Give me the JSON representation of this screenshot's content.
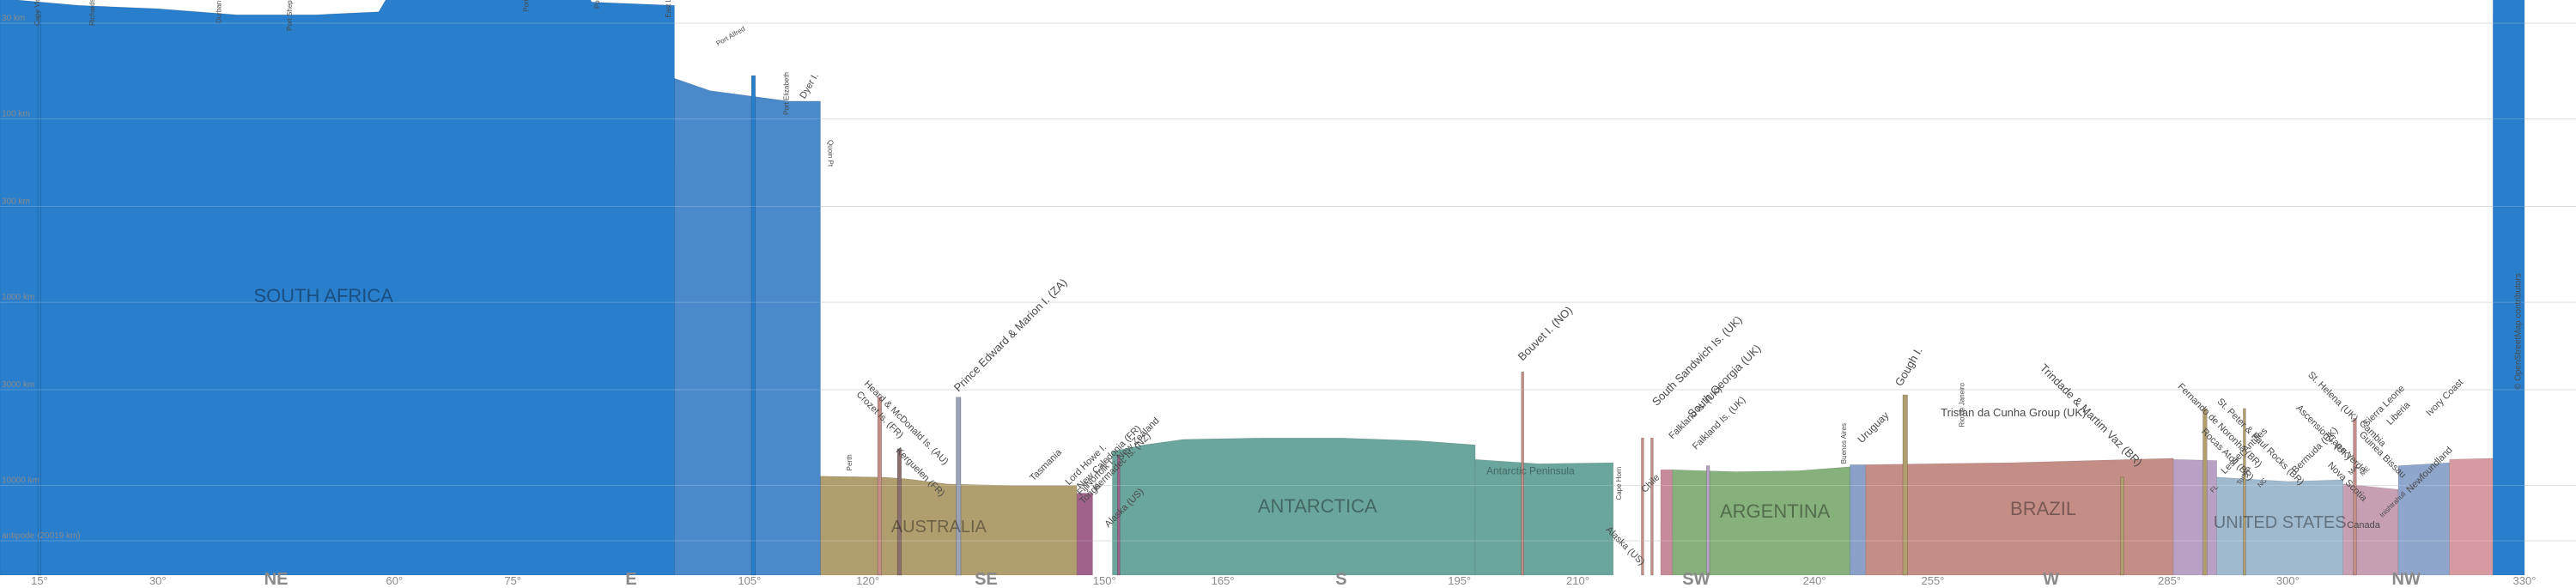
{
  "chart_data": {
    "type": "area",
    "x_unit": "degrees",
    "xlim": [
      10,
      330
    ],
    "y_scale": "log",
    "distance_gridlines": [
      {
        "label": "30 km",
        "km": 30
      },
      {
        "label": "100 km",
        "km": 100
      },
      {
        "label": "300 km",
        "km": 300
      },
      {
        "label": "1000 km",
        "km": 1000
      },
      {
        "label": "3000 km",
        "km": 3000
      },
      {
        "label": "10000 km",
        "km": 10000
      },
      {
        "label": "antipode (20019 km)",
        "km": 20019
      }
    ],
    "x_ticks": [
      {
        "x": 15,
        "label": "15°",
        "kind": "deg"
      },
      {
        "x": 30,
        "label": "30°",
        "kind": "deg"
      },
      {
        "x": 45,
        "label": "NE",
        "kind": "dir"
      },
      {
        "x": 60,
        "label": "60°",
        "kind": "deg"
      },
      {
        "x": 75,
        "label": "75°",
        "kind": "deg"
      },
      {
        "x": 90,
        "label": "E",
        "kind": "dir"
      },
      {
        "x": 105,
        "label": "105°",
        "kind": "deg"
      },
      {
        "x": 120,
        "label": "120°",
        "kind": "deg"
      },
      {
        "x": 135,
        "label": "SE",
        "kind": "dir"
      },
      {
        "x": 150,
        "label": "150°",
        "kind": "deg"
      },
      {
        "x": 165,
        "label": "165°",
        "kind": "deg"
      },
      {
        "x": 180,
        "label": "S",
        "kind": "dir"
      },
      {
        "x": 195,
        "label": "195°",
        "kind": "deg"
      },
      {
        "x": 210,
        "label": "210°",
        "kind": "deg"
      },
      {
        "x": 225,
        "label": "SW",
        "kind": "dir"
      },
      {
        "x": 240,
        "label": "240°",
        "kind": "deg"
      },
      {
        "x": 255,
        "label": "255°",
        "kind": "deg"
      },
      {
        "x": 270,
        "label": "W",
        "kind": "dir"
      },
      {
        "x": 285,
        "label": "285°",
        "kind": "deg"
      },
      {
        "x": 300,
        "label": "300°",
        "kind": "deg"
      },
      {
        "x": 315,
        "label": "NW",
        "kind": "dir"
      },
      {
        "x": 330,
        "label": "330°",
        "kind": "deg"
      }
    ],
    "regions": [
      {
        "name": "SOUTH AFRICA",
        "x0": 10,
        "x1": 95.5,
        "color": "#2a7fcc",
        "label": "SOUTH AFRICA",
        "label_x": 51,
        "label_km": 1000,
        "label_size": 22,
        "profile": [
          [
            10,
            22
          ],
          [
            20,
            24
          ],
          [
            30,
            25
          ],
          [
            40,
            27
          ],
          [
            50,
            27
          ],
          [
            58,
            26
          ],
          [
            59,
            22
          ],
          [
            70,
            21
          ],
          [
            77,
            22
          ],
          [
            78,
            19
          ],
          [
            84,
            19
          ],
          [
            85,
            23
          ],
          [
            95,
            24
          ]
        ]
      },
      {
        "name": "South Africa (south coast)",
        "x0": 95.5,
        "x1": 114,
        "color": "#4a8acb",
        "label": "",
        "profile": [
          [
            95.5,
            60
          ],
          [
            100,
            70
          ],
          [
            110,
            80
          ],
          [
            113,
            80
          ]
        ]
      },
      {
        "name": "Australia",
        "x0": 114,
        "x1": 146.5,
        "color": "#b19e6f",
        "label": "AUSTRALIA",
        "label_x": 129,
        "label_km": 18000,
        "label_size": 20,
        "profile": [
          [
            114,
            8900
          ],
          [
            122,
            9000
          ],
          [
            125,
            9200
          ],
          [
            130,
            9800
          ],
          [
            138,
            10000
          ],
          [
            146,
            10000
          ]
        ]
      },
      {
        "name": "Tasmania",
        "x0": 146.5,
        "x1": 148.5,
        "color": "#a0628a",
        "label": "",
        "profile": [
          [
            146.5,
            11000
          ],
          [
            148.5,
            11000
          ]
        ]
      },
      {
        "name": "Antarctica",
        "x0": 151,
        "x1": 197,
        "color": "#6aa69c",
        "label": "ANTARCTICA",
        "label_x": 177,
        "label_km": 14000,
        "label_size": 22,
        "profile": [
          [
            151,
            6500
          ],
          [
            155,
            6000
          ],
          [
            160,
            5600
          ],
          [
            170,
            5500
          ],
          [
            180,
            5500
          ],
          [
            190,
            5700
          ],
          [
            196,
            6000
          ]
        ]
      },
      {
        "name": "Antarctic Peninsula",
        "x0": 197,
        "x1": 214.5,
        "color": "#6aa69c",
        "label": "Antarctic Peninsula",
        "label_x": 204,
        "label_km": 8700,
        "label_size": 12,
        "profile": [
          [
            197,
            7200
          ],
          [
            205,
            7600
          ],
          [
            214,
            7500
          ]
        ]
      },
      {
        "name": "Chile",
        "x0": 220.5,
        "x1": 222,
        "color": "#c78a98",
        "label": "",
        "profile": [
          [
            220.5,
            8200
          ],
          [
            222,
            8200
          ]
        ]
      },
      {
        "name": "Argentina",
        "x0": 222,
        "x1": 244.5,
        "color": "#86b07c",
        "label": "ARGENTINA",
        "label_x": 235,
        "label_km": 15000,
        "label_size": 22,
        "profile": [
          [
            222,
            8200
          ],
          [
            230,
            8400
          ],
          [
            238,
            8300
          ],
          [
            244,
            7900
          ]
        ]
      },
      {
        "name": "Uruguay",
        "x0": 244.5,
        "x1": 246.5,
        "color": "#8aa0c8",
        "label": "",
        "profile": [
          [
            244.5,
            7700
          ],
          [
            246.5,
            7700
          ]
        ]
      },
      {
        "name": "Brazil",
        "x0": 246.5,
        "x1": 285.5,
        "color": "#c48d86",
        "label": "BRAZIL",
        "label_x": 269,
        "label_km": 14500,
        "label_size": 22,
        "profile": [
          [
            246.5,
            7700
          ],
          [
            255,
            7600
          ],
          [
            265,
            7500
          ],
          [
            275,
            7300
          ],
          [
            285,
            7100
          ]
        ]
      },
      {
        "name": "French Guiana / Suriname / Guyana / Venezuela",
        "x0": 285.5,
        "x1": 291,
        "color": "#b8a1c4",
        "label": "",
        "profile": [
          [
            285.5,
            7200
          ],
          [
            291,
            7300
          ]
        ]
      },
      {
        "name": "United States",
        "x0": 291,
        "x1": 307,
        "color": "#9fb9ce",
        "label": "UNITED STATES",
        "label_x": 299,
        "label_km": 17000,
        "label_size": 20,
        "profile": [
          [
            291,
            9000
          ],
          [
            300,
            9500
          ],
          [
            307,
            9300
          ]
        ]
      },
      {
        "name": "Canada",
        "x0": 307,
        "x1": 314,
        "color": "#c6a0b2",
        "label": "",
        "profile": [
          [
            307,
            9800
          ],
          [
            314,
            10500
          ]
        ]
      },
      {
        "name": "West Africa",
        "x0": 314,
        "x1": 320.5,
        "color": "#8fa6cc",
        "label": "",
        "profile": [
          [
            314,
            7800
          ],
          [
            320.5,
            7500
          ]
        ]
      },
      {
        "name": "Ivory Coast",
        "x0": 320.5,
        "x1": 326,
        "color": "#d89aa2",
        "label": "",
        "profile": [
          [
            320.5,
            7200
          ],
          [
            326,
            7100
          ]
        ]
      },
      {
        "name": "South Africa (west)",
        "x0": 326,
        "x1": 330,
        "color": "#2a7fcc",
        "label": "",
        "profile": [
          [
            326,
            22
          ],
          [
            330,
            22
          ]
        ]
      }
    ],
    "spikes": [
      {
        "x": 15,
        "km": 26,
        "w": 0.4,
        "color": "#2a7fcc",
        "label": "Cape Vidal"
      },
      {
        "x": 105.5,
        "km": 58,
        "w": 0.5,
        "color": "#2a7fcc",
        "label": ""
      },
      {
        "x": 121.5,
        "km": 3300,
        "w": 0.5,
        "color": "#c48d86",
        "label": ""
      },
      {
        "x": 124,
        "km": 6300,
        "w": 0.5,
        "color": "#8b6e6e",
        "label": ""
      },
      {
        "x": 131.5,
        "km": 3300,
        "w": 0.6,
        "color": "#9aa2b8",
        "label": ""
      },
      {
        "x": 151.8,
        "km": 6800,
        "w": 0.3,
        "color": "#a0628a",
        "label": ""
      },
      {
        "x": 203,
        "km": 2400,
        "w": 0.3,
        "color": "#c48d86",
        "label": ""
      },
      {
        "x": 218.2,
        "km": 5500,
        "w": 0.3,
        "color": "#c48d86",
        "label": ""
      },
      {
        "x": 219.4,
        "km": 5500,
        "w": 0.3,
        "color": "#c48d86",
        "label": ""
      },
      {
        "x": 226.5,
        "km": 7800,
        "w": 0.4,
        "color": "#b8a1c4",
        "label": ""
      },
      {
        "x": 251.5,
        "km": 3200,
        "w": 0.6,
        "color": "#b19e6f",
        "label": ""
      },
      {
        "x": 279,
        "km": 9000,
        "w": 0.4,
        "color": "#b19e6f",
        "label": ""
      },
      {
        "x": 289.5,
        "km": 3800,
        "w": 0.5,
        "color": "#b19e6f",
        "label": ""
      },
      {
        "x": 294.5,
        "km": 3800,
        "w": 0.3,
        "color": "#b19e6f",
        "label": ""
      },
      {
        "x": 308.5,
        "km": 4300,
        "w": 0.4,
        "color": "#c48d86",
        "label": ""
      }
    ],
    "annotations": [
      {
        "text": "Cape Vidal",
        "x": 15,
        "km": 31,
        "angle": -90,
        "size": 8
      },
      {
        "text": "Richards Bay",
        "x": 22,
        "km": 31,
        "angle": -90,
        "size": 8
      },
      {
        "text": "Durban",
        "x": 38,
        "km": 30,
        "angle": -90,
        "size": 8
      },
      {
        "text": "Port Shepstone",
        "x": 47,
        "km": 33,
        "angle": -90,
        "size": 8
      },
      {
        "text": "Port Edward",
        "x": 77,
        "km": 26,
        "angle": -90,
        "size": 8
      },
      {
        "text": "Port St Johns",
        "x": 86,
        "km": 25,
        "angle": -90,
        "size": 8
      },
      {
        "text": "East London",
        "x": 95,
        "km": 28,
        "angle": -90,
        "size": 8
      },
      {
        "text": "Port Alfred",
        "x": 101,
        "km": 40,
        "angle": -30,
        "size": 8
      },
      {
        "text": "Port Elizabeth",
        "x": 110,
        "km": 95,
        "angle": -90,
        "size": 8
      },
      {
        "text": "Dyer I.",
        "x": 112,
        "km": 78,
        "angle": -60,
        "size": 11
      },
      {
        "text": "Quoin Pt",
        "x": 115,
        "km": 130,
        "angle": 90,
        "size": 8
      },
      {
        "text": "Perth",
        "x": 118,
        "km": 8300,
        "angle": -90,
        "size": 8
      },
      {
        "text": "Heard & McDonald Is. (AU)",
        "x": 119.5,
        "km": 2800,
        "angle": 45,
        "size": 11
      },
      {
        "text": "Crozet Is. (FR)",
        "x": 118.5,
        "km": 3200,
        "angle": 45,
        "size": 11
      },
      {
        "text": "Kerguelen (FR)",
        "x": 123.5,
        "km": 6500,
        "angle": 45,
        "size": 11
      },
      {
        "text": "Prince Edward & Marion I. (ZA)",
        "x": 131.5,
        "km": 3100,
        "angle": -45,
        "size": 13
      },
      {
        "text": "Tasmania",
        "x": 141,
        "km": 9500,
        "angle": -45,
        "size": 11
      },
      {
        "text": "Lord Howe I.",
        "x": 145.5,
        "km": 10000,
        "angle": -45,
        "size": 11
      },
      {
        "text": "New Zealand",
        "x": 152,
        "km": 7300,
        "angle": -45,
        "size": 11
      },
      {
        "text": "New Caledonia (FR)",
        "x": 147,
        "km": 10500,
        "angle": -45,
        "size": 11
      },
      {
        "text": "Norfolk I.",
        "x": 148,
        "km": 10300,
        "angle": -45,
        "size": 11
      },
      {
        "text": "Kermadec Is. (NZ)",
        "x": 149,
        "km": 10700,
        "angle": -45,
        "size": 11
      },
      {
        "text": "Fiji",
        "x": 147,
        "km": 11400,
        "angle": -45,
        "size": 11
      },
      {
        "text": "Tonga",
        "x": 147.3,
        "km": 12700,
        "angle": -45,
        "size": 11
      },
      {
        "text": "Alaska (US)",
        "x": 150.5,
        "km": 17000,
        "angle": -45,
        "size": 11
      },
      {
        "text": "Bouvet I. (NO)",
        "x": 203,
        "km": 2100,
        "angle": -45,
        "size": 13
      },
      {
        "text": "Alaska (US)",
        "x": 213.5,
        "km": 17500,
        "angle": 45,
        "size": 11
      },
      {
        "text": "Falkland Is. (UK)",
        "x": 222,
        "km": 5600,
        "angle": -45,
        "size": 11
      },
      {
        "text": "Cape Horn",
        "x": 215.5,
        "km": 12000,
        "angle": -90,
        "size": 8
      },
      {
        "text": "Chile",
        "x": 218.5,
        "km": 11000,
        "angle": -45,
        "size": 11
      },
      {
        "text": "Falkland Is. (UK)",
        "x": 225,
        "km": 6400,
        "angle": -45,
        "size": 11
      },
      {
        "text": "South Sandwich Is. (UK)",
        "x": 220,
        "km": 3700,
        "angle": -45,
        "size": 13
      },
      {
        "text": "South Georgia (UK)",
        "x": 224.5,
        "km": 4300,
        "angle": -45,
        "size": 13
      },
      {
        "text": "Gough I.",
        "x": 251,
        "km": 2900,
        "angle": -60,
        "size": 13
      },
      {
        "text": "Tristan da Cunha Group (UK)",
        "x": 256,
        "km": 4200,
        "angle": 0,
        "size": 13
      },
      {
        "text": "Buenos Aires",
        "x": 244,
        "km": 7600,
        "angle": -90,
        "size": 8
      },
      {
        "text": "Uruguay",
        "x": 246,
        "km": 5900,
        "angle": -45,
        "size": 12
      },
      {
        "text": "Rio de Janeiro",
        "x": 259,
        "km": 4800,
        "angle": -90,
        "size": 8
      },
      {
        "text": "Trindade & Martim Vaz (BR)",
        "x": 268.5,
        "km": 2300,
        "angle": 45,
        "size": 13
      },
      {
        "text": "Fernando de Noronha (BR)",
        "x": 286,
        "km": 2900,
        "angle": 45,
        "size": 11
      },
      {
        "text": "St. Peter & Paul Rocks (BR)",
        "x": 291,
        "km": 3500,
        "angle": 45,
        "size": 11
      },
      {
        "text": "Rocas Atoll (BR)",
        "x": 289,
        "km": 5100,
        "angle": 45,
        "size": 11
      },
      {
        "text": "Lesser Antilles",
        "x": 292,
        "km": 8700,
        "angle": -45,
        "size": 11
      },
      {
        "text": "Ascension I. (UK)",
        "x": 301,
        "km": 3800,
        "angle": 45,
        "size": 11
      },
      {
        "text": "St. Helena (UK)",
        "x": 302.5,
        "km": 2500,
        "angle": 45,
        "size": 11
      },
      {
        "text": "Cape Verde",
        "x": 305,
        "km": 5500,
        "angle": 45,
        "size": 11
      },
      {
        "text": "Bermuda (UK)",
        "x": 301,
        "km": 8600,
        "angle": -45,
        "size": 11
      },
      {
        "text": "Nova Scotia",
        "x": 305,
        "km": 7800,
        "angle": 45,
        "size": 11
      },
      {
        "text": "Gambia",
        "x": 309,
        "km": 4600,
        "angle": 45,
        "size": 11
      },
      {
        "text": "Sierra Leone",
        "x": 310,
        "km": 4800,
        "angle": -45,
        "size": 11
      },
      {
        "text": "Liberia",
        "x": 313,
        "km": 4700,
        "angle": -45,
        "size": 11
      },
      {
        "text": "Guinea Bissau",
        "x": 309,
        "km": 5300,
        "angle": 45,
        "size": 11
      },
      {
        "text": "Newfoundland",
        "x": 315.5,
        "km": 11000,
        "angle": -45,
        "size": 11
      },
      {
        "text": "Canada",
        "x": 307.5,
        "km": 17000,
        "angle": 0,
        "size": 11
      },
      {
        "text": "Ivory Coast",
        "x": 318,
        "km": 4200,
        "angle": -45,
        "size": 11
      },
      {
        "text": "Inishtrahull",
        "x": 312,
        "km": 15000,
        "angle": -45,
        "size": 8
      },
      {
        "text": "Tortola",
        "x": 294,
        "km": 10000,
        "angle": -60,
        "size": 8
      },
      {
        "text": "MA",
        "x": 308,
        "km": 8800,
        "angle": -45,
        "size": 8
      },
      {
        "text": "ME",
        "x": 309.5,
        "km": 8900,
        "angle": -45,
        "size": 8
      },
      {
        "text": "NC",
        "x": 296.5,
        "km": 10300,
        "angle": -45,
        "size": 8
      },
      {
        "text": "FL",
        "x": 290.5,
        "km": 11000,
        "angle": -45,
        "size": 8
      },
      {
        "text": "Zanghbabir",
        "x": 328,
        "km": 22,
        "angle": -90,
        "size": 8
      },
      {
        "text": "© OpenStreetMap contributors",
        "x": 329.5,
        "km": 3000,
        "angle": -90,
        "size": 10
      }
    ]
  }
}
